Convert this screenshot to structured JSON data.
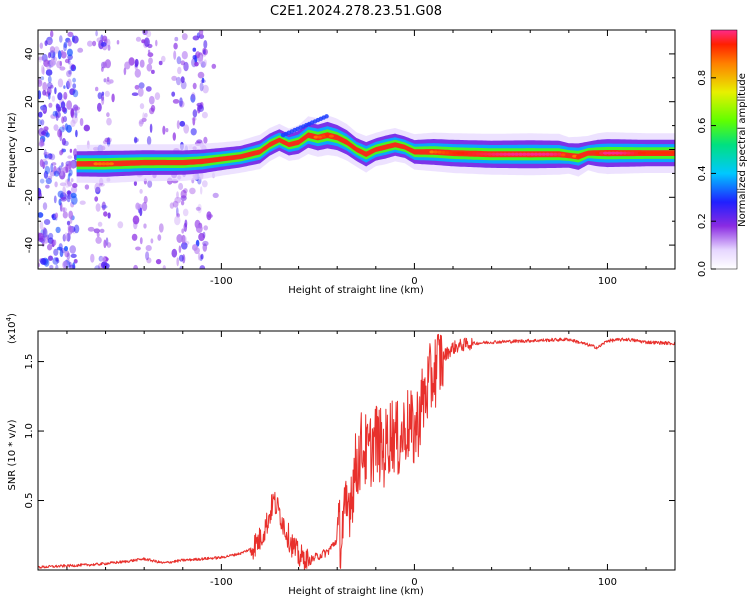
{
  "title": "C2E1.2024.278.23.51.G08",
  "colors": {
    "snr_line": "#e8302c",
    "axis": "#000000",
    "background": "#ffffff"
  },
  "chart_data": [
    {
      "type": "heatmap",
      "name": "spectrogram",
      "xlabel": "Height of straight line (km)",
      "ylabel": "Frequency (Hz)",
      "xlim": [
        -195,
        135
      ],
      "ylim": [
        -50,
        50
      ],
      "x_ticks": [
        -100,
        0,
        100
      ],
      "x_tick_labels": [
        "-100",
        "0",
        "100"
      ],
      "y_ticks": [
        -40,
        -20,
        0,
        20,
        40
      ],
      "y_tick_labels": [
        "-40",
        "-20",
        "0",
        "20",
        "40"
      ],
      "colorbar": {
        "label": "Normalized spectral amplitude",
        "range": [
          0,
          1
        ],
        "ticks": [
          0.0,
          0.2,
          0.4,
          0.6,
          0.8
        ],
        "tick_labels": [
          "0.0",
          "0.2",
          "0.4",
          "0.6",
          "0.8"
        ]
      },
      "ridge": {
        "x": [
          -175,
          -160,
          -140,
          -120,
          -110,
          -100,
          -90,
          -80,
          -75,
          -70,
          -65,
          -60,
          -55,
          -50,
          -45,
          -40,
          -35,
          -30,
          -25,
          -20,
          -15,
          -10,
          -5,
          0,
          10,
          20,
          40,
          60,
          75,
          80,
          85,
          90,
          95,
          100,
          110,
          120,
          135
        ],
        "freq": [
          -6,
          -6,
          -5.5,
          -5.5,
          -5,
          -4,
          -3,
          -1,
          2,
          4,
          2,
          3,
          6,
          5,
          6,
          5,
          3,
          0,
          -2,
          0,
          1,
          2,
          1,
          -1,
          -1,
          -1.5,
          -2,
          -2,
          -2,
          -2.5,
          -3,
          -1.5,
          -1.5,
          -1.5,
          -1.5,
          -1.5,
          -1.5
        ],
        "amplitude": [
          0.75,
          0.8,
          0.72,
          0.7,
          0.65,
          0.55,
          0.5,
          0.6,
          0.55,
          0.5,
          0.5,
          0.6,
          0.75,
          0.8,
          0.85,
          0.75,
          0.7,
          0.6,
          0.7,
          0.55,
          0.6,
          0.55,
          0.5,
          0.65,
          0.8,
          0.85,
          0.9,
          0.95,
          0.9,
          0.7,
          0.85,
          0.6,
          0.85,
          0.95,
          0.9,
          0.85,
          0.85
        ]
      }
    },
    {
      "type": "line",
      "name": "snr",
      "xlabel": "Height of straight line (km)",
      "ylabel": "SNR (10 * v/v)",
      "y_multiplier_label": "(x10",
      "y_multiplier_exponent": "4",
      "y_multiplier_close": ")",
      "xlim": [
        -195,
        135
      ],
      "ylim": [
        0,
        1.72
      ],
      "x_ticks": [
        -100,
        0,
        100
      ],
      "x_tick_labels": [
        "-100",
        "0",
        "100"
      ],
      "y_ticks": [
        0.5,
        1.0,
        1.5
      ],
      "y_tick_labels": [
        "0.5",
        "1.0",
        "1.5"
      ],
      "series": [
        {
          "name": "SNR",
          "x": [
            -195,
            -180,
            -165,
            -150,
            -140,
            -130,
            -120,
            -110,
            -100,
            -90,
            -85,
            -80,
            -76,
            -73,
            -70,
            -67,
            -64,
            -60,
            -55,
            -50,
            -45,
            -40,
            -36,
            -33,
            -30,
            -27,
            -24,
            -20,
            -16,
            -12,
            -8,
            -4,
            0,
            4,
            8,
            12,
            16,
            20,
            25,
            30,
            40,
            60,
            80,
            90,
            95,
            100,
            110,
            120,
            135
          ],
          "y": [
            0.02,
            0.03,
            0.04,
            0.06,
            0.08,
            0.05,
            0.07,
            0.08,
            0.09,
            0.12,
            0.15,
            0.22,
            0.35,
            0.5,
            0.42,
            0.3,
            0.2,
            0.1,
            0.06,
            0.1,
            0.13,
            0.22,
            0.35,
            0.55,
            0.75,
            0.9,
            0.82,
            0.95,
            0.85,
            1.0,
            0.92,
            1.05,
            0.98,
            1.2,
            1.35,
            1.48,
            1.55,
            1.6,
            1.62,
            1.63,
            1.64,
            1.65,
            1.66,
            1.62,
            1.6,
            1.65,
            1.66,
            1.64,
            1.63
          ]
        }
      ]
    }
  ]
}
